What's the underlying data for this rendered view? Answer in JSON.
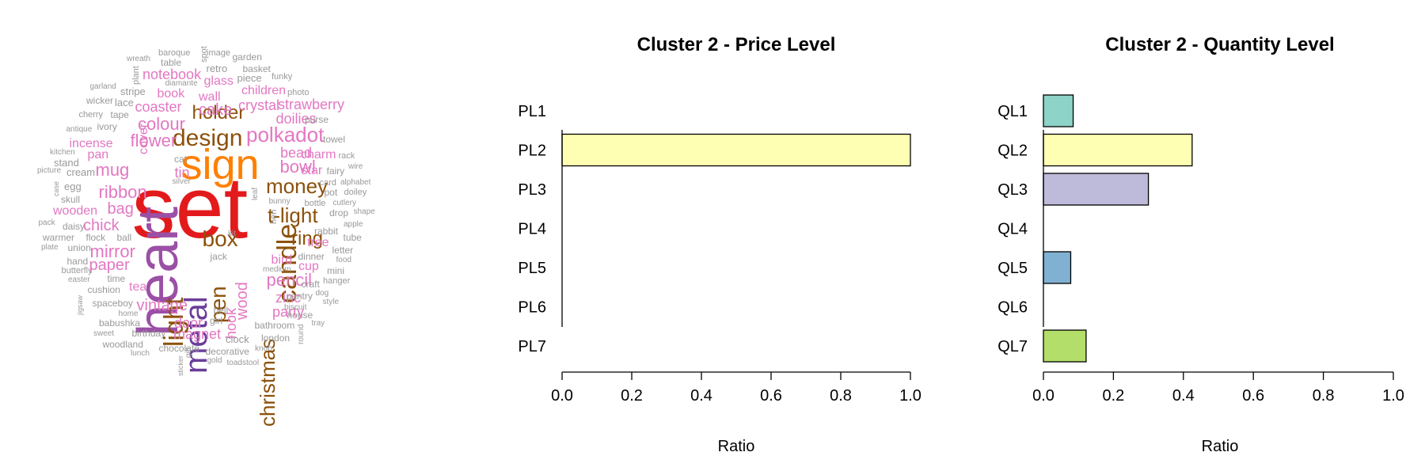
{
  "wordcloud": {
    "words": [
      {
        "text": "set",
        "color": "#e31a1c"
      },
      {
        "text": "heart",
        "color": "#9b4fa6"
      },
      {
        "text": "sign",
        "color": "#ff7f00"
      },
      {
        "text": "metal",
        "color": "#6a3d9a"
      },
      {
        "text": "light",
        "color": "#8c510a"
      },
      {
        "text": "design",
        "color": "#8c510a"
      },
      {
        "text": "candle",
        "color": "#8c510a"
      },
      {
        "text": "christmas",
        "color": "#8c510a"
      },
      {
        "text": "money",
        "color": "#8c510a"
      },
      {
        "text": "t-light",
        "color": "#8c510a"
      },
      {
        "text": "holder",
        "color": "#8c510a"
      },
      {
        "text": "box",
        "color": "#8c510a"
      },
      {
        "text": "pen",
        "color": "#8c510a"
      },
      {
        "text": "ring",
        "color": "#8c510a"
      },
      {
        "text": "polkadot",
        "color": "#e377c2"
      },
      {
        "text": "ribbon",
        "color": "#e377c2"
      },
      {
        "text": "mirror",
        "color": "#e377c2"
      },
      {
        "text": "paper",
        "color": "#e377c2"
      },
      {
        "text": "vintage",
        "color": "#e377c2"
      },
      {
        "text": "pencil",
        "color": "#e377c2"
      },
      {
        "text": "bowl",
        "color": "#e377c2"
      },
      {
        "text": "flower",
        "color": "#e377c2"
      },
      {
        "text": "colour",
        "color": "#e377c2"
      },
      {
        "text": "mug",
        "color": "#e377c2"
      },
      {
        "text": "bag",
        "color": "#e377c2"
      },
      {
        "text": "wood",
        "color": "#e377c2"
      },
      {
        "text": "chick",
        "color": "#e377c2"
      },
      {
        "text": "cake",
        "color": "#e377c2"
      },
      {
        "text": "crystal",
        "color": "#e377c2"
      },
      {
        "text": "strawberry",
        "color": "#e377c2"
      },
      {
        "text": "coaster",
        "color": "#e377c2"
      },
      {
        "text": "doilies",
        "color": "#e377c2"
      },
      {
        "text": "bead",
        "color": "#e377c2"
      },
      {
        "text": "zinc",
        "color": "#e377c2"
      },
      {
        "text": "party",
        "color": "#e377c2"
      },
      {
        "text": "door",
        "color": "#e377c2"
      },
      {
        "text": "magnet",
        "color": "#e377c2"
      },
      {
        "text": "hook",
        "color": "#e377c2"
      },
      {
        "text": "tin",
        "color": "#e377c2"
      },
      {
        "text": "notebook",
        "color": "#e377c2"
      },
      {
        "text": "book",
        "color": "#e377c2"
      },
      {
        "text": "wall",
        "color": "#e377c2"
      },
      {
        "text": "glass",
        "color": "#e377c2"
      },
      {
        "text": "children",
        "color": "#e377c2"
      },
      {
        "text": "incense",
        "color": "#e377c2"
      },
      {
        "text": "pan",
        "color": "#e377c2"
      },
      {
        "text": "cover",
        "color": "#e377c2"
      },
      {
        "text": "wooden",
        "color": "#e377c2"
      },
      {
        "text": "tea",
        "color": "#e377c2"
      },
      {
        "text": "bird",
        "color": "#e377c2"
      },
      {
        "text": "cup",
        "color": "#e377c2"
      },
      {
        "text": "tree",
        "color": "#e377c2"
      },
      {
        "text": "charm",
        "color": "#e377c2"
      },
      {
        "text": "star",
        "color": "#e377c2"
      },
      {
        "text": "baroque",
        "color": "#999999"
      },
      {
        "text": "table",
        "color": "#999999"
      },
      {
        "text": "spot",
        "color": "#999999"
      },
      {
        "text": "image",
        "color": "#999999"
      },
      {
        "text": "garden",
        "color": "#999999"
      },
      {
        "text": "wreath",
        "color": "#999999"
      },
      {
        "text": "plant",
        "color": "#999999"
      },
      {
        "text": "retro",
        "color": "#999999"
      },
      {
        "text": "basket",
        "color": "#999999"
      },
      {
        "text": "piece",
        "color": "#999999"
      },
      {
        "text": "funky",
        "color": "#999999"
      },
      {
        "text": "garland",
        "color": "#999999"
      },
      {
        "text": "diamante",
        "color": "#999999"
      },
      {
        "text": "stripe",
        "color": "#999999"
      },
      {
        "text": "wicker",
        "color": "#999999"
      },
      {
        "text": "lace",
        "color": "#999999"
      },
      {
        "text": "photo",
        "color": "#999999"
      },
      {
        "text": "cherry",
        "color": "#999999"
      },
      {
        "text": "tape",
        "color": "#999999"
      },
      {
        "text": "purse",
        "color": "#999999"
      },
      {
        "text": "antique",
        "color": "#999999"
      },
      {
        "text": "ivory",
        "color": "#999999"
      },
      {
        "text": "towel",
        "color": "#999999"
      },
      {
        "text": "kitchen",
        "color": "#999999"
      },
      {
        "text": "stand",
        "color": "#999999"
      },
      {
        "text": "cat",
        "color": "#999999"
      },
      {
        "text": "rack",
        "color": "#999999"
      },
      {
        "text": "picture",
        "color": "#999999"
      },
      {
        "text": "cream",
        "color": "#999999"
      },
      {
        "text": "fairy",
        "color": "#999999"
      },
      {
        "text": "wire",
        "color": "#999999"
      },
      {
        "text": "case",
        "color": "#999999"
      },
      {
        "text": "silver",
        "color": "#999999"
      },
      {
        "text": "card",
        "color": "#999999"
      },
      {
        "text": "alphabet",
        "color": "#999999"
      },
      {
        "text": "egg",
        "color": "#999999"
      },
      {
        "text": "leaf",
        "color": "#999999"
      },
      {
        "text": "pot",
        "color": "#999999"
      },
      {
        "text": "doiley",
        "color": "#999999"
      },
      {
        "text": "skull",
        "color": "#999999"
      },
      {
        "text": "hen",
        "color": "#999999"
      },
      {
        "text": "bottle",
        "color": "#999999"
      },
      {
        "text": "cutlery",
        "color": "#999999"
      },
      {
        "text": "bunny",
        "color": "#999999"
      },
      {
        "text": "drop",
        "color": "#999999"
      },
      {
        "text": "shape",
        "color": "#999999"
      },
      {
        "text": "pack",
        "color": "#999999"
      },
      {
        "text": "daisy",
        "color": "#999999"
      },
      {
        "text": "apple",
        "color": "#999999"
      },
      {
        "text": "rabbit",
        "color": "#999999"
      },
      {
        "text": "warmer",
        "color": "#999999"
      },
      {
        "text": "flock",
        "color": "#999999"
      },
      {
        "text": "ball",
        "color": "#999999"
      },
      {
        "text": "kit",
        "color": "#999999"
      },
      {
        "text": "tube",
        "color": "#999999"
      },
      {
        "text": "plate",
        "color": "#999999"
      },
      {
        "text": "letter",
        "color": "#999999"
      },
      {
        "text": "jack",
        "color": "#999999"
      },
      {
        "text": "hand",
        "color": "#999999"
      },
      {
        "text": "union",
        "color": "#999999"
      },
      {
        "text": "dinner",
        "color": "#999999"
      },
      {
        "text": "food",
        "color": "#999999"
      },
      {
        "text": "butterfly",
        "color": "#999999"
      },
      {
        "text": "mini",
        "color": "#999999"
      },
      {
        "text": "medium",
        "color": "#999999"
      },
      {
        "text": "easter",
        "color": "#999999"
      },
      {
        "text": "time",
        "color": "#999999"
      },
      {
        "text": "craft",
        "color": "#999999"
      },
      {
        "text": "hanger",
        "color": "#999999"
      },
      {
        "text": "cushion",
        "color": "#999999"
      },
      {
        "text": "pantry",
        "color": "#999999"
      },
      {
        "text": "dog",
        "color": "#999999"
      },
      {
        "text": "jigsaw",
        "color": "#999999"
      },
      {
        "text": "spaceboy",
        "color": "#999999"
      },
      {
        "text": "style",
        "color": "#999999"
      },
      {
        "text": "home",
        "color": "#999999"
      },
      {
        "text": "bell",
        "color": "#999999"
      },
      {
        "text": "biscuit",
        "color": "#999999"
      },
      {
        "text": "babushka",
        "color": "#999999"
      },
      {
        "text": "house",
        "color": "#999999"
      },
      {
        "text": "girl",
        "color": "#999999"
      },
      {
        "text": "tray",
        "color": "#999999"
      },
      {
        "text": "birthday",
        "color": "#999999"
      },
      {
        "text": "bathroom",
        "color": "#999999"
      },
      {
        "text": "sweet",
        "color": "#999999"
      },
      {
        "text": "round",
        "color": "#999999"
      },
      {
        "text": "woodland",
        "color": "#999999"
      },
      {
        "text": "clock",
        "color": "#999999"
      },
      {
        "text": "london",
        "color": "#999999"
      },
      {
        "text": "chocolate",
        "color": "#999999"
      },
      {
        "text": "decorative",
        "color": "#999999"
      },
      {
        "text": "knob",
        "color": "#999999"
      },
      {
        "text": "lunch",
        "color": "#999999"
      },
      {
        "text": "gift",
        "color": "#999999"
      },
      {
        "text": "gold",
        "color": "#999999"
      },
      {
        "text": "toadstool",
        "color": "#999999"
      },
      {
        "text": "sticker",
        "color": "#999999"
      }
    ]
  },
  "chart_data": [
    {
      "type": "bar",
      "orientation": "horizontal",
      "title": "Cluster 2 - Price Level",
      "xlabel": "Ratio",
      "ylabel": "",
      "categories": [
        "PL1",
        "PL2",
        "PL3",
        "PL4",
        "PL5",
        "PL6",
        "PL7"
      ],
      "values": [
        0,
        1.0,
        0,
        0,
        0,
        0,
        0
      ],
      "colors": [
        "#8dd3c7",
        "#ffffb3",
        "#bebada",
        "#fb8072",
        "#80b1d3",
        "#fdb462",
        "#b3de69"
      ],
      "xlim": [
        0,
        1
      ],
      "xticks": [
        "0.0",
        "0.2",
        "0.4",
        "0.6",
        "0.8",
        "1.0"
      ],
      "grid": false
    },
    {
      "type": "bar",
      "orientation": "horizontal",
      "title": "Cluster 2 - Quantity Level",
      "xlabel": "Ratio",
      "ylabel": "",
      "categories": [
        "QL1",
        "QL2",
        "QL3",
        "QL4",
        "QL5",
        "QL6",
        "QL7"
      ],
      "values": [
        0.085,
        0.425,
        0.3,
        0,
        0.078,
        0,
        0.122
      ],
      "colors": [
        "#8dd3c7",
        "#ffffb3",
        "#bebada",
        "#fb8072",
        "#80b1d3",
        "#fdb462",
        "#b3de69"
      ],
      "xlim": [
        0,
        1
      ],
      "xticks": [
        "0.0",
        "0.2",
        "0.4",
        "0.6",
        "0.8",
        "1.0"
      ],
      "grid": false
    }
  ]
}
